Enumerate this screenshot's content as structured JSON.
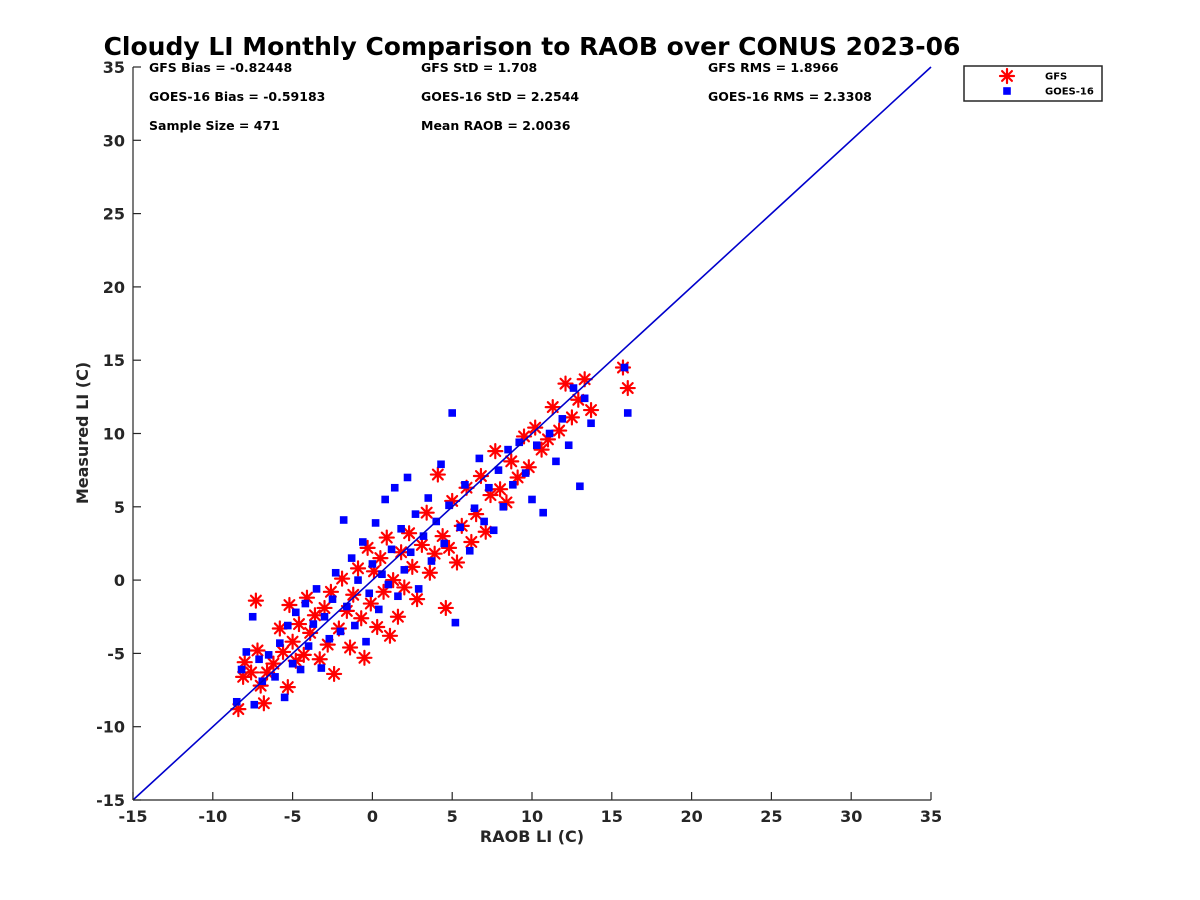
{
  "chart_data": {
    "type": "scatter",
    "title": "Cloudy LI Monthly Comparison to RAOB over CONUS 2023-06",
    "xlabel": "RAOB LI (C)",
    "ylabel": "Measured LI (C)",
    "xlim": [
      -15,
      35
    ],
    "ylim": [
      -15,
      35
    ],
    "xticks": [
      "-15",
      "-10",
      "-5",
      "0",
      "5",
      "10",
      "15",
      "20",
      "25",
      "30",
      "35"
    ],
    "yticks": [
      "-15",
      "-10",
      "-5",
      "0",
      "5",
      "10",
      "15",
      "20",
      "25",
      "30",
      "35"
    ],
    "grid": false,
    "legend_position": "outside-top-right",
    "reference_line": {
      "x": [
        -15,
        35
      ],
      "y": [
        -15,
        35
      ],
      "color": "#0000cc"
    },
    "stats": [
      [
        "GFS Bias = -0.82448",
        "GFS StD = 1.708",
        "GFS RMS = 1.8966"
      ],
      [
        "GOES-16 Bias = -0.59183",
        "GOES-16 StD = 2.2544",
        "GOES-16 RMS = 2.3308"
      ],
      [
        "Sample Size = 471",
        "Mean RAOB = 2.0036",
        ""
      ]
    ],
    "series": [
      {
        "name": "GFS",
        "marker": "asterisk",
        "color": "#ff0000",
        "points": [
          [
            -8.4,
            -8.8
          ],
          [
            -8.1,
            -6.6
          ],
          [
            -8.0,
            -5.6
          ],
          [
            -7.6,
            -6.3
          ],
          [
            -7.3,
            -1.4
          ],
          [
            -7.2,
            -4.8
          ],
          [
            -7.0,
            -7.2
          ],
          [
            -6.8,
            -8.4
          ],
          [
            -6.6,
            -6.3
          ],
          [
            -6.2,
            -5.7
          ],
          [
            -5.8,
            -3.3
          ],
          [
            -5.6,
            -4.9
          ],
          [
            -5.3,
            -7.3
          ],
          [
            -5.2,
            -1.7
          ],
          [
            -5.0,
            -4.2
          ],
          [
            -4.8,
            -5.5
          ],
          [
            -4.6,
            -3.0
          ],
          [
            -4.3,
            -5.1
          ],
          [
            -4.1,
            -1.2
          ],
          [
            -3.9,
            -3.6
          ],
          [
            -3.6,
            -2.4
          ],
          [
            -3.3,
            -5.4
          ],
          [
            -3.0,
            -1.9
          ],
          [
            -2.8,
            -4.4
          ],
          [
            -2.6,
            -0.8
          ],
          [
            -2.4,
            -6.4
          ],
          [
            -2.1,
            -3.3
          ],
          [
            -1.9,
            0.1
          ],
          [
            -1.6,
            -2.1
          ],
          [
            -1.4,
            -4.6
          ],
          [
            -1.2,
            -1.0
          ],
          [
            -0.9,
            0.8
          ],
          [
            -0.7,
            -2.6
          ],
          [
            -0.5,
            -5.3
          ],
          [
            -0.3,
            2.2
          ],
          [
            -0.1,
            -1.6
          ],
          [
            0.1,
            0.6
          ],
          [
            0.3,
            -3.2
          ],
          [
            0.5,
            1.5
          ],
          [
            0.7,
            -0.8
          ],
          [
            0.9,
            2.9
          ],
          [
            1.1,
            -3.8
          ],
          [
            1.3,
            0.0
          ],
          [
            1.6,
            -2.5
          ],
          [
            1.8,
            1.9
          ],
          [
            2.0,
            -0.5
          ],
          [
            2.3,
            3.2
          ],
          [
            2.5,
            0.9
          ],
          [
            2.8,
            -1.3
          ],
          [
            3.1,
            2.4
          ],
          [
            3.4,
            4.6
          ],
          [
            3.6,
            0.5
          ],
          [
            3.9,
            1.8
          ],
          [
            4.1,
            7.2
          ],
          [
            4.4,
            3.0
          ],
          [
            4.6,
            -1.9
          ],
          [
            4.8,
            2.2
          ],
          [
            5.0,
            5.4
          ],
          [
            5.3,
            1.2
          ],
          [
            5.6,
            3.7
          ],
          [
            5.9,
            6.3
          ],
          [
            6.2,
            2.6
          ],
          [
            6.5,
            4.5
          ],
          [
            6.8,
            7.1
          ],
          [
            7.1,
            3.3
          ],
          [
            7.4,
            5.8
          ],
          [
            7.7,
            8.8
          ],
          [
            8.0,
            6.2
          ],
          [
            8.4,
            5.3
          ],
          [
            8.7,
            8.1
          ],
          [
            9.1,
            7.0
          ],
          [
            9.5,
            9.8
          ],
          [
            9.8,
            7.7
          ],
          [
            10.2,
            10.4
          ],
          [
            10.6,
            8.9
          ],
          [
            11.0,
            9.6
          ],
          [
            11.3,
            11.8
          ],
          [
            11.7,
            10.2
          ],
          [
            12.1,
            13.4
          ],
          [
            12.5,
            11.1
          ],
          [
            12.9,
            12.3
          ],
          [
            13.3,
            13.7
          ],
          [
            13.7,
            11.6
          ],
          [
            15.7,
            14.5
          ],
          [
            16.0,
            13.1
          ]
        ]
      },
      {
        "name": "GOES-16",
        "marker": "square",
        "color": "#0000ff",
        "points": [
          [
            -8.5,
            -8.3
          ],
          [
            -8.2,
            -6.1
          ],
          [
            -7.9,
            -4.9
          ],
          [
            -7.5,
            -2.5
          ],
          [
            -7.4,
            -8.5
          ],
          [
            -7.1,
            -5.4
          ],
          [
            -6.9,
            -6.9
          ],
          [
            -6.5,
            -5.1
          ],
          [
            -6.1,
            -6.6
          ],
          [
            -5.8,
            -4.3
          ],
          [
            -5.5,
            -8.0
          ],
          [
            -5.3,
            -3.1
          ],
          [
            -5.0,
            -5.7
          ],
          [
            -4.8,
            -2.2
          ],
          [
            -4.5,
            -6.1
          ],
          [
            -4.2,
            -1.6
          ],
          [
            -4.0,
            -4.5
          ],
          [
            -3.7,
            -3.0
          ],
          [
            -3.5,
            -0.6
          ],
          [
            -3.2,
            -6.0
          ],
          [
            -3.0,
            -2.5
          ],
          [
            -2.7,
            -4.0
          ],
          [
            -2.5,
            -1.3
          ],
          [
            -2.3,
            0.5
          ],
          [
            -2.0,
            -3.5
          ],
          [
            -1.8,
            4.1
          ],
          [
            -1.6,
            -1.8
          ],
          [
            -1.3,
            1.5
          ],
          [
            -1.1,
            -3.1
          ],
          [
            -0.9,
            0.0
          ],
          [
            -0.6,
            2.6
          ],
          [
            -0.4,
            -4.2
          ],
          [
            -0.2,
            -0.9
          ],
          [
            0.0,
            1.1
          ],
          [
            0.2,
            3.9
          ],
          [
            0.4,
            -2.0
          ],
          [
            0.6,
            0.4
          ],
          [
            0.8,
            5.5
          ],
          [
            1.0,
            -0.3
          ],
          [
            1.2,
            2.1
          ],
          [
            1.4,
            6.3
          ],
          [
            1.6,
            -1.1
          ],
          [
            1.8,
            3.5
          ],
          [
            2.0,
            0.7
          ],
          [
            2.2,
            7.0
          ],
          [
            2.4,
            1.9
          ],
          [
            2.7,
            4.5
          ],
          [
            2.9,
            -0.6
          ],
          [
            3.2,
            3.0
          ],
          [
            3.5,
            5.6
          ],
          [
            3.7,
            1.3
          ],
          [
            4.0,
            4.0
          ],
          [
            4.3,
            7.9
          ],
          [
            4.5,
            2.5
          ],
          [
            4.8,
            5.1
          ],
          [
            5.0,
            11.4
          ],
          [
            5.2,
            -2.9
          ],
          [
            5.5,
            3.6
          ],
          [
            5.8,
            6.5
          ],
          [
            6.1,
            2.0
          ],
          [
            6.4,
            4.9
          ],
          [
            6.7,
            8.3
          ],
          [
            7.0,
            4.0
          ],
          [
            7.3,
            6.3
          ],
          [
            7.6,
            3.4
          ],
          [
            7.9,
            7.5
          ],
          [
            8.2,
            5.0
          ],
          [
            8.5,
            8.9
          ],
          [
            8.8,
            6.5
          ],
          [
            9.2,
            9.4
          ],
          [
            9.6,
            7.3
          ],
          [
            10.0,
            5.5
          ],
          [
            10.3,
            9.2
          ],
          [
            10.7,
            4.6
          ],
          [
            11.1,
            10.0
          ],
          [
            11.5,
            8.1
          ],
          [
            11.9,
            11.0
          ],
          [
            12.3,
            9.2
          ],
          [
            12.6,
            13.1
          ],
          [
            13.0,
            6.4
          ],
          [
            13.3,
            12.4
          ],
          [
            13.7,
            10.7
          ],
          [
            15.8,
            14.5
          ],
          [
            16.0,
            11.4
          ]
        ]
      }
    ]
  }
}
